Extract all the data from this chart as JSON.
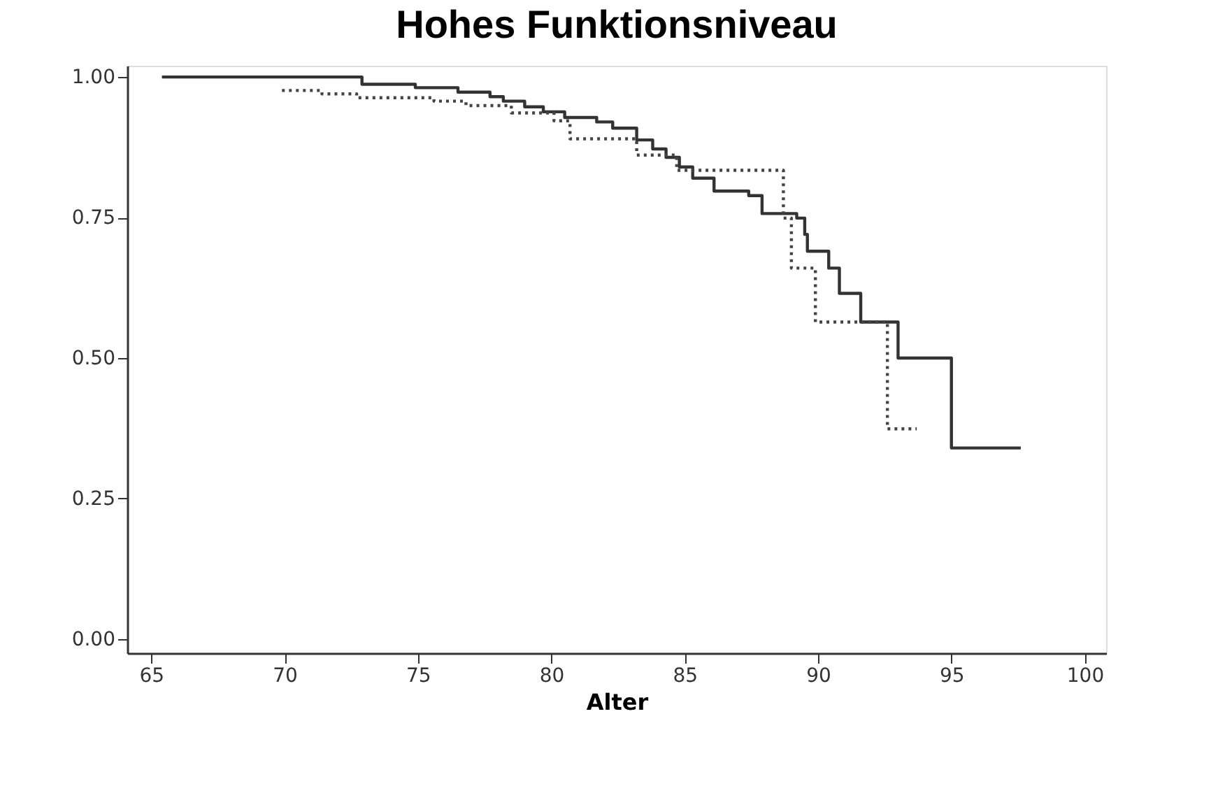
{
  "chart_data": {
    "type": "step",
    "title": "Hohes Funktionsniveau",
    "xlabel": "Alter",
    "xlim": [
      64.1,
      100.8
    ],
    "xticks": [
      65,
      70,
      75,
      80,
      85,
      90,
      95,
      100
    ],
    "ylim": [
      -0.025,
      1.02
    ],
    "yticks": [
      {
        "value": 0,
        "label": "0.00"
      },
      {
        "value": 0.25,
        "label": "0.25"
      },
      {
        "value": 0.5,
        "label": "0.50"
      },
      {
        "value": 0.75,
        "label": "0.75"
      },
      {
        "value": 1,
        "label": "1.00"
      }
    ],
    "grid": false,
    "marker": "none",
    "series": [
      {
        "color": "#333333",
        "line_style": "solid",
        "x": [
          65.4,
          72.9,
          74.9,
          76.5,
          77.7,
          78.2,
          79.0,
          79.7,
          80.5,
          81.7,
          82.3,
          83.2,
          83.8,
          84.3,
          84.8,
          85.3,
          86.1,
          87.4,
          87.9,
          89.2,
          89.5,
          89.6,
          90.4,
          90.8,
          91.6,
          93.0,
          95.0,
          97.6
        ],
        "values": [
          1.0,
          0.987,
          0.981,
          0.973,
          0.965,
          0.957,
          0.947,
          0.938,
          0.928,
          0.92,
          0.909,
          0.888,
          0.872,
          0.857,
          0.84,
          0.82,
          0.797,
          0.789,
          0.757,
          0.749,
          0.72,
          0.69,
          0.66,
          0.615,
          0.564,
          0.5,
          0.34,
          0.34
        ]
      },
      {
        "color": "#444444",
        "line_style": "dotted",
        "x": [
          69.9,
          71.4,
          72.7,
          75.6,
          76.8,
          78.5,
          80.1,
          80.7,
          83.2,
          84.7,
          88.7,
          89.0,
          89.9,
          92.6,
          93.7
        ],
        "values": [
          0.976,
          0.97,
          0.963,
          0.957,
          0.949,
          0.936,
          0.922,
          0.89,
          0.861,
          0.834,
          0.749,
          0.66,
          0.564,
          0.374,
          0.374
        ]
      }
    ]
  }
}
